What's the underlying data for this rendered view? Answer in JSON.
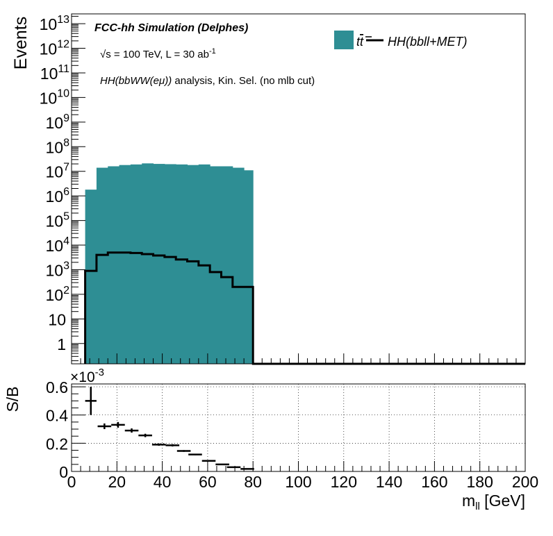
{
  "chart_data": [
    {
      "type": "bar",
      "panel": "main",
      "ylabel": "Events",
      "y_scale": "log",
      "ylim": [
        0.15,
        25000000000000.0
      ],
      "xlim": [
        0,
        200
      ],
      "x_unit_label": "m_ll [GeV]",
      "bin_edges": [
        6,
        11,
        16,
        21,
        26,
        31,
        36,
        41,
        46,
        51,
        56,
        61,
        66,
        71,
        76,
        80
      ],
      "texts": {
        "line1": "FCC-hh Simulation (Delphes)",
        "line2_prefix": "√s = 100 TeV, L = 30 ab",
        "line2_exp": "-1",
        "line3_italic": "HH(bbWW(eμ))",
        "line3_rest": " analysis, Kin. Sel. (no mlb cut)"
      },
      "y_ticks": [
        {
          "value": 1,
          "mantissa": "1",
          "exp": ""
        },
        {
          "value": 10,
          "mantissa": "10",
          "exp": ""
        },
        {
          "value": 100,
          "mantissa": "10",
          "exp": "2"
        },
        {
          "value": 1000,
          "mantissa": "10",
          "exp": "3"
        },
        {
          "value": 10000,
          "mantissa": "10",
          "exp": "4"
        },
        {
          "value": 100000,
          "mantissa": "10",
          "exp": "5"
        },
        {
          "value": 1000000,
          "mantissa": "10",
          "exp": "6"
        },
        {
          "value": 10000000,
          "mantissa": "10",
          "exp": "7"
        },
        {
          "value": 100000000,
          "mantissa": "10",
          "exp": "8"
        },
        {
          "value": 1000000000,
          "mantissa": "10",
          "exp": "9"
        },
        {
          "value": 10000000000,
          "mantissa": "10",
          "exp": "10"
        },
        {
          "value": 100000000000,
          "mantissa": "10",
          "exp": "11"
        },
        {
          "value": 1000000000000,
          "mantissa": "10",
          "exp": "12"
        },
        {
          "value": 10000000000000,
          "mantissa": "10",
          "exp": "13"
        }
      ],
      "series": [
        {
          "name": "t t̄",
          "style": "filled",
          "color": "#2E8E94",
          "values": [
            1800000.0,
            14000000.0,
            16000000.0,
            18000000.0,
            19000000.0,
            21000000.0,
            20000000.0,
            19500000.0,
            19000000.0,
            18000000.0,
            19000000.0,
            16000000.0,
            16000000.0,
            14000000.0,
            11000000.0
          ]
        },
        {
          "name": "HH(bbll+MET)",
          "style": "line",
          "color": "#000000",
          "values": [
            900,
            4000,
            5000,
            5000,
            4800,
            4300,
            3800,
            3300,
            2600,
            2200,
            1500,
            800,
            500,
            200,
            200
          ]
        }
      ],
      "legend": {
        "position": "top-right",
        "ttbar_label": "t",
        "ttbar_label_bar": "t",
        "signal_label": "HH(bbll+MET)"
      }
    },
    {
      "type": "scatter",
      "panel": "ratio",
      "ylabel": "S/B",
      "multiplier_base": "×10",
      "multiplier_exp": "-3",
      "ylim": [
        0,
        0.62
      ],
      "xlim": [
        0,
        200
      ],
      "xlabel_main": "m",
      "xlabel_sub": "ll",
      "xlabel_unit": " [GeV]",
      "y_ticks": [
        "0",
        "0.2",
        "0.4",
        "0.6"
      ],
      "x_ticks": [
        "0",
        "20",
        "40",
        "60",
        "80",
        "100",
        "120",
        "140",
        "160",
        "180",
        "200"
      ],
      "grid": true,
      "points": [
        {
          "x": 8.5,
          "y": 0.5,
          "xerr": 2.5,
          "yerr": 0.1
        },
        {
          "x": 14.5,
          "y": 0.32,
          "xerr": 3,
          "yerr": 0.02
        },
        {
          "x": 20.5,
          "y": 0.33,
          "xerr": 3,
          "yerr": 0.02
        },
        {
          "x": 26.5,
          "y": 0.29,
          "xerr": 3,
          "yerr": 0.015
        },
        {
          "x": 32.5,
          "y": 0.255,
          "xerr": 3,
          "yerr": 0.012
        },
        {
          "x": 38.5,
          "y": 0.19,
          "xerr": 3,
          "yerr": 0.008
        },
        {
          "x": 44.5,
          "y": 0.185,
          "xerr": 3,
          "yerr": 0.008
        },
        {
          "x": 49.5,
          "y": 0.145,
          "xerr": 3,
          "yerr": 0.006
        },
        {
          "x": 54.5,
          "y": 0.12,
          "xerr": 3,
          "yerr": 0.005
        },
        {
          "x": 60.5,
          "y": 0.075,
          "xerr": 3,
          "yerr": 0.004
        },
        {
          "x": 66.5,
          "y": 0.05,
          "xerr": 3,
          "yerr": 0.003
        },
        {
          "x": 71.5,
          "y": 0.03,
          "xerr": 3,
          "yerr": 0.002
        },
        {
          "x": 77.5,
          "y": 0.018,
          "xerr": 3,
          "yerr": 0.002
        }
      ]
    }
  ]
}
